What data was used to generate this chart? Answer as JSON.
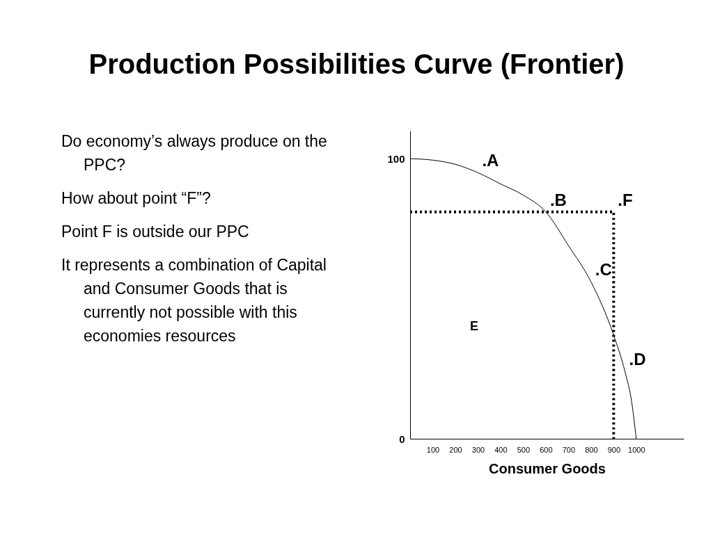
{
  "chart_data": {
    "type": "line",
    "title": "Production Possibilities Curve (Frontier)",
    "xlabel": "Consumer Goods",
    "xlim": [
      0,
      1210
    ],
    "ylim": [
      0,
      110
    ],
    "xticks": [
      100,
      200,
      300,
      400,
      500,
      600,
      700,
      800,
      900,
      1000
    ],
    "yticks": [
      0,
      100
    ],
    "grid": false,
    "marker": "none",
    "series": [
      {
        "color": "#000000",
        "line_style": "solid",
        "x": [
          0,
          100,
          200,
          300,
          400,
          500,
          600,
          700,
          800,
          900,
          950,
          980,
          1000
        ],
        "values": [
          100,
          99.5,
          98,
          95,
          91,
          87,
          81,
          69,
          56,
          37,
          24,
          13,
          0
        ]
      },
      {
        "color": "#000000",
        "line_style": "dotted",
        "x": [
          0,
          900,
          900
        ],
        "values": [
          81,
          81,
          0
        ]
      }
    ],
    "annotations": [
      "Do economy’s always produce on the PPC?",
      "How about point “F”?",
      "Point F is outside our PPC",
      "It represents a combination of Capital and Consumer Goods that is currently not possible with this economies resources",
      {
        "text": ".A",
        "x": 300,
        "y": 95
      },
      {
        "text": ".B",
        "x": 600,
        "y": 81
      },
      {
        "text": ".F",
        "x": 900,
        "y": 81
      },
      {
        "text": ".C",
        "x": 800,
        "y": 56
      },
      {
        "text": ".D",
        "x": 950,
        "y": 24
      },
      "E"
    ]
  }
}
